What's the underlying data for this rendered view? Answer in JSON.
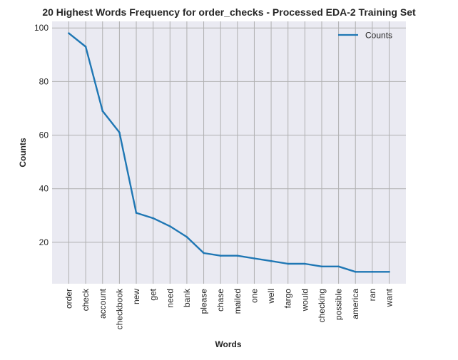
{
  "chart_data": {
    "type": "line",
    "title": "20 Highest Words Frequency for order_checks - Processed EDA-2 Training Set",
    "xlabel": "Words",
    "ylabel": "Counts",
    "categories": [
      "order",
      "check",
      "account",
      "checkbook",
      "new",
      "get",
      "need",
      "bank",
      "please",
      "chase",
      "mailed",
      "one",
      "well",
      "fargo",
      "would",
      "checking",
      "possible",
      "america",
      "ran",
      "want"
    ],
    "series": [
      {
        "name": "Counts",
        "color": "#1f77b4",
        "values": [
          98,
          93,
          69,
          61,
          31,
          29,
          26,
          22,
          16,
          15,
          15,
          14,
          13,
          12,
          12,
          11,
          11,
          9,
          9,
          9
        ]
      }
    ],
    "ylim": [
      4.55,
      102.45
    ],
    "yticks": [
      "20",
      "40",
      "60",
      "80",
      "100"
    ],
    "grid": true,
    "legend_position": "top-right",
    "background_color": "#eaeaf2",
    "grid_color": "#b0b0b0"
  }
}
